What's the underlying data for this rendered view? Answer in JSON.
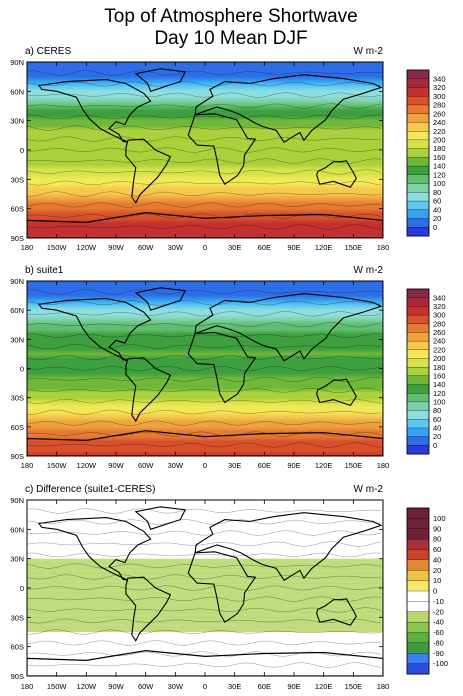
{
  "title_line1": "Top of Atmosphere Shortwave",
  "title_line2": "Day 10 Mean DJF",
  "lon_ticks": [
    "180",
    "150W",
    "120W",
    "90W",
    "60W",
    "30W",
    "0",
    "30E",
    "60E",
    "90E",
    "120E",
    "150E",
    "180"
  ],
  "lat_ticks": [
    "90N",
    "60N",
    "30N",
    "0",
    "30S",
    "60S",
    "90S"
  ],
  "chart_data": [
    {
      "type": "heatmap",
      "label": "a) CERES",
      "units": "W m-2",
      "xlim": [
        -180,
        180
      ],
      "ylim": [
        -90,
        90
      ],
      "colorbar_levels": [
        0,
        20,
        40,
        60,
        80,
        100,
        120,
        140,
        160,
        180,
        200,
        220,
        240,
        260,
        280,
        300,
        320,
        340
      ],
      "zonal_profile": {
        "lat": [
          90,
          75,
          60,
          45,
          30,
          15,
          0,
          -15,
          -30,
          -45,
          -60,
          -75,
          -90
        ],
        "value": [
          0,
          15,
          60,
          110,
          150,
          175,
          160,
          175,
          200,
          235,
          275,
          300,
          305
        ]
      }
    },
    {
      "type": "heatmap",
      "label": "b) suite1",
      "units": "W m-2",
      "xlim": [
        -180,
        180
      ],
      "ylim": [
        -90,
        90
      ],
      "colorbar_levels": [
        0,
        20,
        40,
        60,
        80,
        100,
        120,
        140,
        160,
        180,
        200,
        220,
        240,
        260,
        280,
        300,
        320,
        340
      ],
      "zonal_profile": {
        "lat": [
          90,
          75,
          60,
          45,
          30,
          15,
          0,
          -15,
          -30,
          -45,
          -60,
          -75,
          -90
        ],
        "value": [
          0,
          15,
          65,
          105,
          130,
          140,
          135,
          145,
          175,
          215,
          255,
          290,
          300
        ]
      }
    },
    {
      "type": "heatmap",
      "label": "c) Difference (suite1-CERES)",
      "units": "W m-2",
      "xlim": [
        -180,
        180
      ],
      "ylim": [
        -90,
        90
      ],
      "colorbar_levels": [
        -100,
        -90,
        -80,
        -60,
        -40,
        -20,
        -10,
        0,
        10,
        20,
        40,
        60,
        80,
        90,
        100
      ],
      "zonal_profile": {
        "lat": [
          90,
          75,
          60,
          45,
          30,
          15,
          0,
          -15,
          -30,
          -45,
          -60,
          -75,
          -90
        ],
        "value": [
          0,
          0,
          5,
          -5,
          -20,
          -35,
          -25,
          -30,
          -25,
          -20,
          -20,
          -10,
          -5
        ]
      }
    }
  ],
  "colors": {
    "ramp": [
      "#2a3bd9",
      "#2d6ee8",
      "#35a3f0",
      "#5ec8f2",
      "#8fdede",
      "#7fd0a8",
      "#5fbf6e",
      "#3e9f3e",
      "#6fb83a",
      "#a9d13c",
      "#d6e24a",
      "#f3e857",
      "#f6c84c",
      "#f0a23e",
      "#e57a34",
      "#d9502c",
      "#c53030",
      "#a82a3a",
      "#8a2a48",
      "#6f2256"
    ],
    "diff_ramp": [
      "#2a4fe0",
      "#3a7ef0",
      "#3e9a3e",
      "#5fae42",
      "#8cc54f",
      "#b5d86a",
      "#ffffff",
      "#ffffff",
      "#f6e96a",
      "#f0c44a",
      "#e08a35",
      "#c8432a",
      "#a8303a",
      "#6f2236"
    ]
  }
}
